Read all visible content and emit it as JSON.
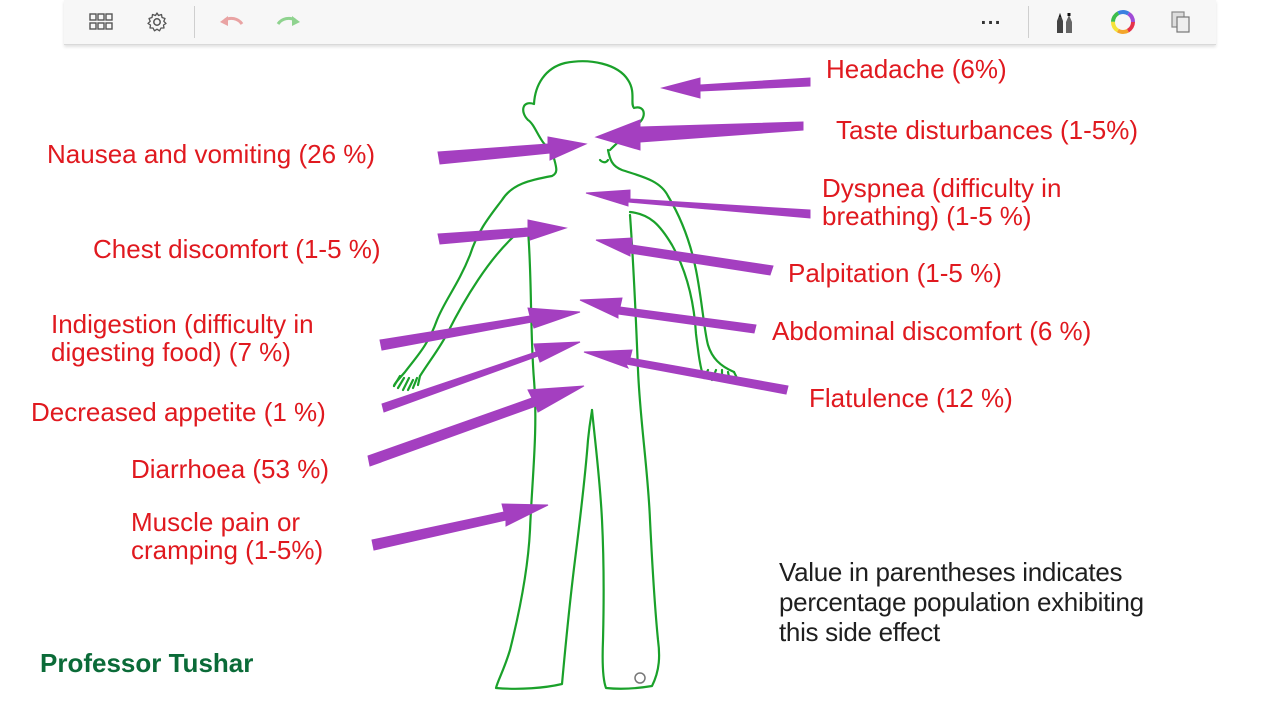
{
  "toolbar": {
    "buttons": [
      {
        "name": "grid-view-icon"
      },
      {
        "name": "settings-gear-icon"
      },
      {
        "name": "undo-arrow-icon"
      },
      {
        "name": "redo-arrow-icon"
      }
    ],
    "more_label": "···",
    "right_icons": [
      "pen-tools-icon",
      "color-wheel-icon",
      "copy-pages-icon"
    ],
    "colors": {
      "undo": "#e9a3a3",
      "redo": "#8fd38f"
    }
  },
  "slide": {
    "body_outline_color": "#1aa12a",
    "arrow_color": "#a43fc0",
    "label_color": "#e0191f",
    "left_labels": [
      {
        "id": "nausea",
        "lines": [
          "Nausea and vomiting (26 %)"
        ]
      },
      {
        "id": "chest",
        "lines": [
          "Chest discomfort (1-5 %)"
        ]
      },
      {
        "id": "indigestion",
        "lines": [
          "Indigestion (difficulty in",
          "digesting food) (7 %)"
        ]
      },
      {
        "id": "appetite",
        "lines": [
          "Decreased appetite (1 %)"
        ]
      },
      {
        "id": "diarrhoea",
        "lines": [
          "Diarrhoea (53 %)"
        ]
      },
      {
        "id": "muscle",
        "lines": [
          "Muscle pain or",
          "cramping  (1-5%)"
        ]
      }
    ],
    "right_labels": [
      {
        "id": "headache",
        "lines": [
          "Headache (6%)"
        ]
      },
      {
        "id": "taste",
        "lines": [
          "Taste disturbances (1-5%)"
        ]
      },
      {
        "id": "dyspnea",
        "lines": [
          "Dyspnea (difficulty in",
          "breathing) (1-5 %)"
        ]
      },
      {
        "id": "palpitation",
        "lines": [
          "Palpitation (1-5 %)"
        ]
      },
      {
        "id": "abdominal",
        "lines": [
          "Abdominal discomfort (6 %)"
        ]
      },
      {
        "id": "flatulence",
        "lines": [
          "Flatulence (12 %)"
        ]
      }
    ],
    "note_lines": [
      "Value in parentheses indicates",
      "percentage population exhibiting",
      "this side effect"
    ],
    "author": "Professor Tushar"
  }
}
